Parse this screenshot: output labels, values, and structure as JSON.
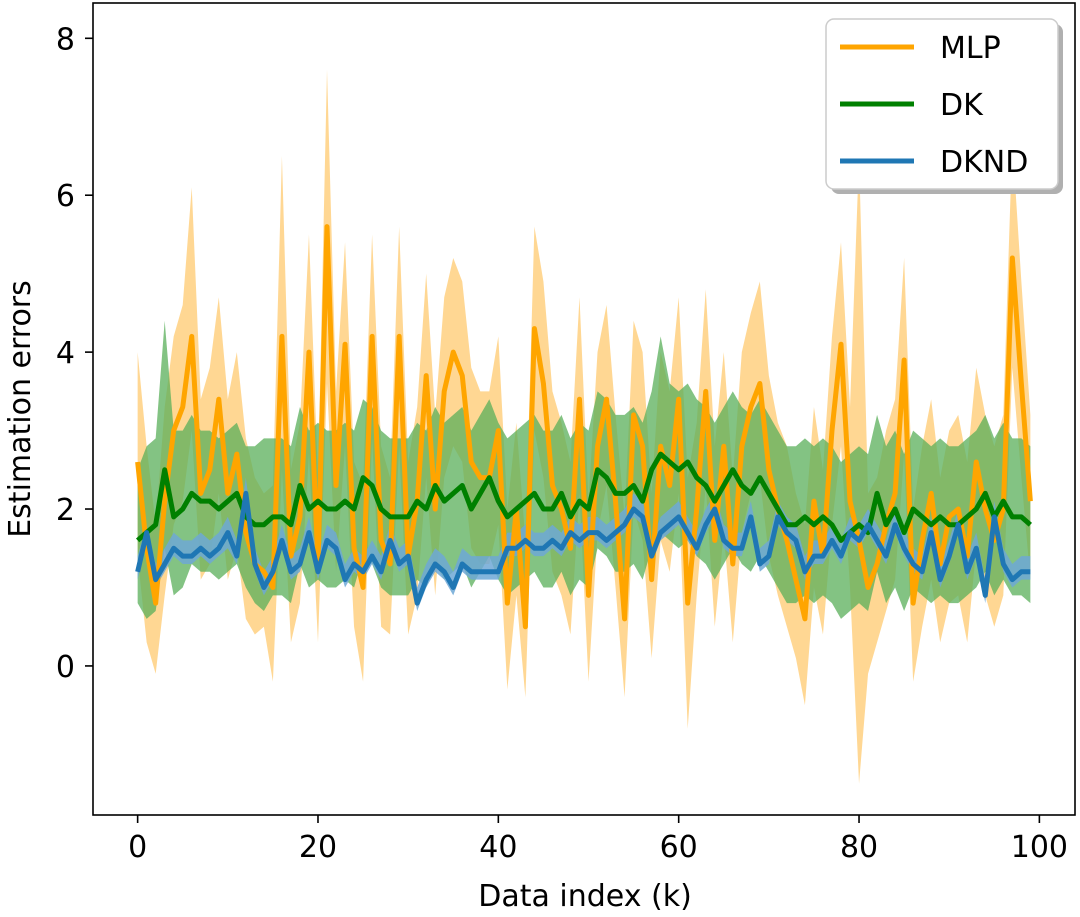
{
  "chart_data": {
    "type": "line",
    "title": "",
    "xlabel": "Data index (k)",
    "ylabel": "Estimation errors",
    "xlim": [
      -4.95,
      103.95
    ],
    "ylim": [
      -1.9,
      8.45
    ],
    "xticks": [
      0,
      20,
      40,
      60,
      80,
      100
    ],
    "yticks": [
      0,
      2,
      4,
      6,
      8
    ],
    "grid": false,
    "legend_position": "upper right",
    "series": [
      {
        "name": "MLP",
        "color": "#ffa500",
        "band_color": "#ffd080",
        "values": [
          2.6,
          1.5,
          0.8,
          2.1,
          3.0,
          3.3,
          4.2,
          2.2,
          2.5,
          3.4,
          2.2,
          2.7,
          1.7,
          1.3,
          1.2,
          1.0,
          4.2,
          1.4,
          1.9,
          4.0,
          1.3,
          5.6,
          2.3,
          4.1,
          1.5,
          1.0,
          4.2,
          1.6,
          1.3,
          4.2,
          1.4,
          2.1,
          3.7,
          2.0,
          3.5,
          4.0,
          3.7,
          2.6,
          2.4,
          2.4,
          3.0,
          0.8,
          2.0,
          0.5,
          4.3,
          3.6,
          2.3,
          2.0,
          1.5,
          3.4,
          0.9,
          2.8,
          3.4,
          2.1,
          0.6,
          3.2,
          2.8,
          1.1,
          2.8,
          2.3,
          3.4,
          0.8,
          2.0,
          3.5,
          1.6,
          2.8,
          1.3,
          2.8,
          3.3,
          3.6,
          2.5,
          2.0,
          1.6,
          1.1,
          0.6,
          2.1,
          1.4,
          3.0,
          4.1,
          2.1,
          1.6,
          1.0,
          1.3,
          1.8,
          2.2,
          3.9,
          0.8,
          1.6,
          2.2,
          1.3,
          1.9,
          2.0,
          1.4,
          2.6,
          2.0,
          1.6,
          2.0,
          5.2,
          3.6,
          2.1
        ],
        "lower": [
          1.4,
          0.3,
          -0.1,
          0.9,
          1.8,
          2.1,
          3.0,
          1.1,
          1.3,
          2.2,
          1.1,
          1.5,
          0.6,
          0.4,
          0.5,
          -0.2,
          2.5,
          0.3,
          0.8,
          2.7,
          0.3,
          3.6,
          1.2,
          2.8,
          0.5,
          -0.2,
          2.9,
          0.5,
          0.4,
          2.8,
          0.4,
          0.9,
          2.4,
          0.9,
          2.4,
          2.8,
          2.6,
          1.5,
          1.3,
          1.3,
          1.8,
          -0.3,
          0.9,
          -0.4,
          3.0,
          2.4,
          1.2,
          0.9,
          0.4,
          2.2,
          -0.2,
          1.7,
          2.3,
          1.0,
          -0.4,
          2.0,
          1.6,
          0.1,
          1.6,
          1.2,
          2.2,
          -0.8,
          0.9,
          2.3,
          0.5,
          1.7,
          0.3,
          1.7,
          2.2,
          2.4,
          1.4,
          0.9,
          0.5,
          0.1,
          -0.5,
          1.0,
          0.4,
          1.8,
          2.8,
          1.0,
          -1.5,
          -0.1,
          0.3,
          0.7,
          1.1,
          2.7,
          -0.2,
          0.5,
          1.1,
          0.3,
          0.8,
          0.9,
          0.3,
          1.5,
          0.9,
          0.5,
          0.9,
          3.8,
          2.4,
          1.1
        ],
        "upper": [
          4.0,
          2.8,
          1.8,
          3.3,
          4.2,
          4.6,
          6.1,
          3.4,
          3.8,
          4.7,
          3.4,
          4.0,
          2.9,
          2.4,
          2.2,
          2.3,
          6.5,
          2.5,
          3.1,
          5.5,
          2.4,
          7.6,
          3.5,
          5.4,
          2.6,
          2.3,
          5.5,
          2.8,
          2.4,
          5.6,
          2.6,
          3.3,
          5.0,
          3.2,
          4.7,
          5.2,
          4.9,
          3.8,
          3.5,
          3.5,
          4.2,
          2.0,
          3.1,
          1.6,
          5.6,
          4.9,
          3.5,
          3.1,
          2.6,
          4.7,
          2.1,
          4.0,
          4.6,
          3.2,
          1.9,
          4.4,
          4.0,
          2.2,
          4.0,
          3.5,
          4.7,
          2.4,
          3.1,
          4.8,
          2.8,
          4.0,
          2.4,
          4.0,
          4.5,
          4.9,
          3.7,
          3.1,
          2.8,
          2.2,
          1.8,
          3.3,
          2.5,
          4.2,
          5.4,
          3.3,
          6.5,
          2.2,
          2.4,
          3.0,
          3.4,
          5.2,
          2.0,
          2.8,
          3.4,
          2.4,
          3.0,
          3.2,
          2.6,
          3.8,
          3.2,
          2.8,
          3.2,
          6.7,
          4.9,
          3.2
        ]
      },
      {
        "name": "DK",
        "color": "#008000",
        "band_color": "#5aaf5a",
        "values": [
          1.6,
          1.7,
          1.8,
          2.5,
          1.9,
          2.0,
          2.2,
          2.1,
          2.1,
          2.0,
          2.1,
          2.2,
          1.9,
          1.8,
          1.8,
          1.9,
          1.9,
          1.8,
          2.3,
          2.0,
          2.1,
          2.0,
          2.0,
          2.1,
          2.0,
          2.4,
          2.3,
          2.0,
          1.9,
          1.9,
          1.9,
          2.1,
          2.0,
          2.3,
          2.1,
          2.2,
          2.3,
          2.0,
          2.2,
          2.4,
          2.1,
          1.9,
          2.0,
          2.1,
          2.2,
          2.0,
          2.0,
          2.2,
          1.9,
          2.1,
          2.0,
          2.5,
          2.4,
          2.2,
          2.2,
          2.3,
          2.1,
          2.5,
          2.7,
          2.6,
          2.5,
          2.6,
          2.4,
          2.3,
          2.1,
          2.3,
          2.5,
          2.3,
          2.2,
          2.4,
          2.2,
          2.0,
          1.8,
          1.8,
          1.9,
          1.8,
          1.9,
          1.8,
          1.6,
          1.7,
          1.8,
          1.7,
          2.2,
          1.8,
          2.0,
          1.7,
          2.0,
          1.9,
          1.8,
          1.9,
          1.8,
          1.8,
          1.9,
          2.0,
          2.2,
          1.9,
          2.1,
          1.9,
          1.9,
          1.8
        ],
        "lower": [
          0.8,
          0.6,
          0.7,
          1.5,
          0.9,
          1.0,
          1.3,
          1.2,
          1.2,
          1.1,
          1.2,
          1.3,
          1.0,
          0.8,
          0.7,
          0.9,
          0.9,
          0.8,
          1.3,
          1.0,
          1.1,
          1.0,
          1.0,
          1.1,
          1.0,
          1.4,
          1.3,
          1.0,
          0.9,
          0.9,
          0.9,
          1.1,
          1.0,
          1.3,
          1.1,
          1.2,
          1.3,
          1.0,
          1.2,
          1.4,
          1.1,
          0.9,
          1.0,
          1.1,
          1.2,
          1.0,
          1.0,
          1.2,
          0.9,
          1.1,
          1.0,
          1.5,
          1.4,
          1.2,
          1.2,
          1.3,
          1.1,
          1.5,
          1.7,
          1.6,
          1.5,
          1.6,
          1.4,
          1.3,
          1.1,
          1.3,
          1.5,
          1.3,
          1.2,
          1.4,
          1.2,
          1.0,
          0.8,
          0.8,
          0.9,
          0.8,
          0.9,
          0.8,
          0.6,
          0.7,
          0.8,
          0.7,
          1.2,
          0.8,
          1.0,
          0.7,
          1.0,
          0.9,
          0.8,
          0.9,
          0.8,
          0.8,
          0.9,
          1.0,
          1.2,
          0.9,
          1.1,
          0.9,
          0.9,
          0.8
        ],
        "upper": [
          2.5,
          2.8,
          2.9,
          4.4,
          3.0,
          3.0,
          3.2,
          3.0,
          3.0,
          2.9,
          3.0,
          3.1,
          2.8,
          2.8,
          2.9,
          2.9,
          2.9,
          2.8,
          3.3,
          3.0,
          3.1,
          3.0,
          3.0,
          3.1,
          3.0,
          3.4,
          3.3,
          3.0,
          2.9,
          2.9,
          2.9,
          3.1,
          3.0,
          3.3,
          3.1,
          3.2,
          3.3,
          3.0,
          3.2,
          3.4,
          3.1,
          2.9,
          3.0,
          3.1,
          3.2,
          3.0,
          3.0,
          3.2,
          2.9,
          3.1,
          3.0,
          3.5,
          3.4,
          3.2,
          3.2,
          3.3,
          3.1,
          3.5,
          4.2,
          3.6,
          3.5,
          3.6,
          3.4,
          3.3,
          3.1,
          3.3,
          3.5,
          3.3,
          3.2,
          3.4,
          3.2,
          3.0,
          2.8,
          2.8,
          2.9,
          2.8,
          2.9,
          2.8,
          2.6,
          2.7,
          2.8,
          2.7,
          3.2,
          2.8,
          3.0,
          2.7,
          3.0,
          2.9,
          2.8,
          2.9,
          2.8,
          2.8,
          2.9,
          3.0,
          3.2,
          2.9,
          3.1,
          2.9,
          2.9,
          2.8
        ]
      },
      {
        "name": "DKND",
        "color": "#1f77b4",
        "band_color": "#6fa8d6",
        "values": [
          1.2,
          1.7,
          1.1,
          1.3,
          1.5,
          1.4,
          1.4,
          1.5,
          1.4,
          1.5,
          1.7,
          1.4,
          2.2,
          1.3,
          1.0,
          1.2,
          1.6,
          1.2,
          1.3,
          1.7,
          1.2,
          1.6,
          1.5,
          1.1,
          1.3,
          1.2,
          1.4,
          1.2,
          1.6,
          1.3,
          1.4,
          0.8,
          1.1,
          1.3,
          1.2,
          1.0,
          1.3,
          1.2,
          1.2,
          1.2,
          1.2,
          1.5,
          1.5,
          1.6,
          1.5,
          1.5,
          1.6,
          1.5,
          1.7,
          1.6,
          1.7,
          1.7,
          1.6,
          1.7,
          1.8,
          2.0,
          1.9,
          1.4,
          1.7,
          1.8,
          1.9,
          1.7,
          1.5,
          1.8,
          2.0,
          1.6,
          1.5,
          1.5,
          1.9,
          1.3,
          1.4,
          1.9,
          1.7,
          1.6,
          1.2,
          1.4,
          1.4,
          1.6,
          1.4,
          1.7,
          1.6,
          1.8,
          1.6,
          1.4,
          1.8,
          1.5,
          1.3,
          1.2,
          1.7,
          1.1,
          1.4,
          1.8,
          1.2,
          1.5,
          0.9,
          1.9,
          1.3,
          1.1,
          1.2,
          1.2
        ],
        "lower": [
          1.1,
          1.6,
          1.0,
          1.2,
          1.4,
          1.3,
          1.3,
          1.4,
          1.3,
          1.4,
          1.5,
          1.3,
          2.0,
          1.2,
          0.9,
          1.1,
          1.5,
          1.1,
          1.2,
          1.6,
          1.1,
          1.5,
          1.4,
          1.0,
          1.2,
          1.1,
          1.3,
          1.1,
          1.5,
          1.2,
          1.3,
          0.7,
          1.0,
          1.2,
          1.1,
          0.9,
          1.2,
          1.1,
          1.1,
          1.1,
          1.1,
          1.4,
          1.4,
          1.5,
          1.4,
          1.4,
          1.5,
          1.4,
          1.6,
          1.5,
          1.6,
          1.6,
          1.5,
          1.6,
          1.7,
          1.9,
          1.8,
          1.3,
          1.6,
          1.7,
          1.8,
          1.6,
          1.4,
          1.7,
          1.9,
          1.5,
          1.4,
          1.4,
          1.8,
          1.2,
          1.3,
          1.8,
          1.6,
          1.5,
          1.1,
          1.3,
          1.3,
          1.5,
          1.3,
          1.6,
          1.5,
          1.7,
          1.5,
          1.3,
          1.7,
          1.4,
          1.2,
          1.1,
          1.6,
          1.0,
          1.3,
          1.7,
          1.1,
          1.4,
          0.8,
          1.8,
          1.2,
          1.0,
          1.1,
          1.1
        ],
        "upper": [
          1.4,
          1.8,
          1.3,
          1.5,
          1.7,
          1.6,
          1.6,
          1.7,
          1.6,
          1.7,
          1.9,
          1.6,
          2.4,
          1.5,
          1.2,
          1.4,
          1.8,
          1.4,
          1.5,
          1.9,
          1.4,
          1.8,
          1.7,
          1.3,
          1.5,
          1.4,
          1.6,
          1.4,
          1.8,
          1.5,
          1.6,
          1.0,
          1.3,
          1.5,
          1.4,
          1.2,
          1.5,
          1.4,
          1.4,
          1.4,
          1.4,
          1.7,
          1.7,
          1.8,
          1.7,
          1.7,
          1.8,
          1.7,
          1.9,
          1.8,
          1.9,
          1.9,
          1.8,
          1.9,
          2.0,
          2.2,
          2.1,
          1.6,
          1.9,
          2.0,
          2.1,
          1.9,
          1.7,
          2.0,
          2.2,
          1.8,
          1.7,
          1.7,
          2.1,
          1.5,
          1.6,
          2.1,
          1.9,
          1.8,
          1.4,
          1.6,
          1.6,
          1.8,
          1.6,
          1.9,
          1.8,
          2.0,
          1.8,
          1.6,
          2.0,
          1.7,
          1.5,
          1.4,
          1.9,
          1.3,
          1.6,
          2.0,
          1.4,
          1.7,
          1.1,
          2.1,
          1.5,
          1.3,
          1.4,
          1.4
        ]
      }
    ]
  }
}
